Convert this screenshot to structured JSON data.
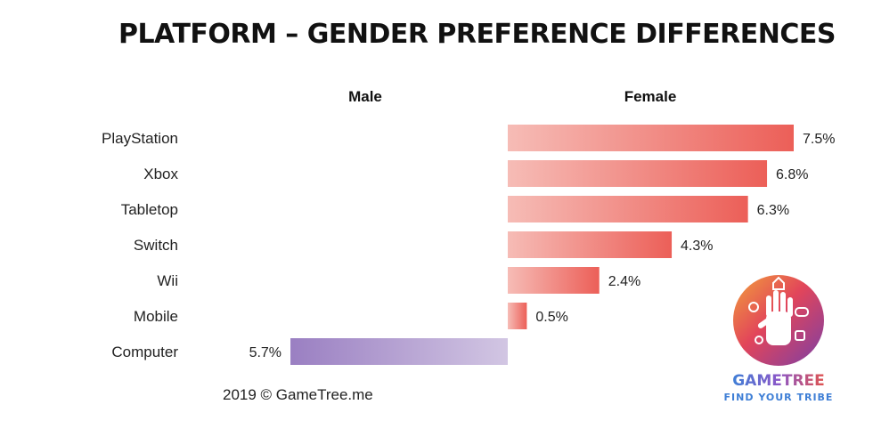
{
  "title": "PLATFORM – GENDER PREFERENCE DIFFERENCES",
  "columns": {
    "left": "Male",
    "right": "Female"
  },
  "footer": "2019 © GameTree.me",
  "logo": {
    "name": "GAMETREE",
    "tagline": "FIND YOUR TRIBE"
  },
  "colors": {
    "female_start": "#f6bcb6",
    "female_end": "#ec5f58",
    "male_start": "#9a7fc2",
    "male_end": "#d2c6e3"
  },
  "chart_data": {
    "type": "bar",
    "orientation": "horizontal",
    "diverging": true,
    "unit": "%",
    "categories": [
      "PlayStation",
      "Xbox",
      "Tabletop",
      "Switch",
      "Wii",
      "Mobile",
      "Computer"
    ],
    "series": [
      {
        "name": "Male",
        "values": [
          null,
          null,
          null,
          null,
          null,
          null,
          5.7
        ]
      },
      {
        "name": "Female",
        "values": [
          7.5,
          6.8,
          6.3,
          4.3,
          2.4,
          0.5,
          null
        ]
      }
    ],
    "value_labels": [
      "7.5%",
      "6.8%",
      "6.3%",
      "4.3%",
      "2.4%",
      "0.5%",
      "5.7%"
    ]
  }
}
